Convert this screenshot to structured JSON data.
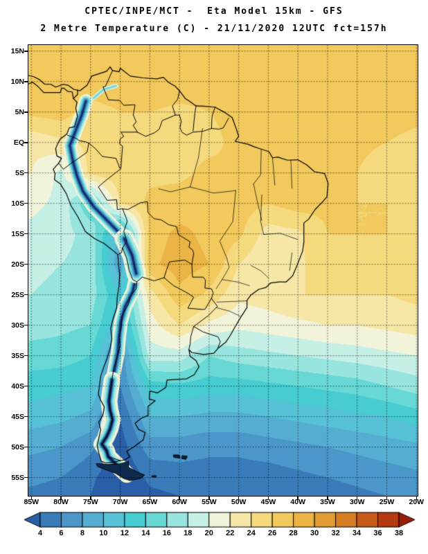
{
  "header": {
    "line1": "CPTEC/INPE/MCT -  Eta Model 15km - GFS",
    "line2": "2 Metre Temperature (C) - 21/11/2020 12UTC fct=157h"
  },
  "map": {
    "extent": {
      "lon_min": -85.5,
      "lon_max": -19.8,
      "lat_min": -58.0,
      "lat_max": 16.0
    },
    "lat_labels": [
      "15N",
      "10N",
      "5N",
      "EQ",
      "5S",
      "10S",
      "15S",
      "20S",
      "25S",
      "30S",
      "35S",
      "40S",
      "45S",
      "50S",
      "55S"
    ],
    "lat_values": [
      15,
      10,
      5,
      0,
      -5,
      -10,
      -15,
      -20,
      -25,
      -30,
      -35,
      -40,
      -45,
      -50,
      -55
    ],
    "lon_labels": [
      "85W",
      "80W",
      "75W",
      "70W",
      "65W",
      "60W",
      "55W",
      "50W",
      "45W",
      "40W",
      "35W",
      "30W",
      "25W",
      "20W"
    ],
    "lon_values": [
      -85,
      -80,
      -75,
      -70,
      -65,
      -60,
      -55,
      -50,
      -45,
      -40,
      -35,
      -30,
      -25,
      -20
    ]
  },
  "colorbar": {
    "tick_labels": [
      "4",
      "6",
      "8",
      "10",
      "12",
      "14",
      "16",
      "18",
      "20",
      "22",
      "24",
      "26",
      "28",
      "30",
      "32",
      "34",
      "36",
      "38"
    ],
    "colors": [
      "#2a5ea6",
      "#3a7cba",
      "#4b97c9",
      "#55add2",
      "#57c1d6",
      "#46ccd1",
      "#67d8d3",
      "#97e5de",
      "#c6efe6",
      "#f2f4da",
      "#f6e7a7",
      "#f5d97d",
      "#f1c95c",
      "#ebb445",
      "#e39b33",
      "#d77d24",
      "#c65b17",
      "#b23a0e",
      "#971f07"
    ]
  },
  "chart_data": {
    "type": "heatmap",
    "title": "2 Metre Temperature (C)",
    "source": "CPTEC/INPE/MCT",
    "model": "Eta Model 15km - GFS",
    "valid": "21/11/2020 12UTC fct=157h",
    "units": "C",
    "scale_ticks": [
      4,
      6,
      8,
      10,
      12,
      14,
      16,
      18,
      20,
      22,
      24,
      26,
      28,
      30,
      32,
      34,
      36,
      38
    ],
    "grid": {
      "lons": [
        -85,
        -80,
        -75,
        -70,
        -65,
        -60,
        -55,
        -50,
        -45,
        -40,
        -35,
        -30,
        -25,
        -20
      ],
      "lats": [
        15,
        10,
        5,
        0,
        -5,
        -10,
        -15,
        -20,
        -25,
        -30,
        -35,
        -40,
        -45,
        -50,
        -55,
        -58
      ],
      "temps_c": [
        [
          27,
          27.5,
          27.5,
          27.5,
          27.5,
          27.5,
          27.5,
          27.5,
          27.2,
          27,
          27,
          26.8,
          26.6,
          26.5
        ],
        [
          26.5,
          27.5,
          27.5,
          27.5,
          27.5,
          27.2,
          27,
          27,
          27,
          26.8,
          26.6,
          26.5,
          26.4,
          26.3
        ],
        [
          26.5,
          27,
          25,
          26,
          26,
          25.5,
          26,
          26.5,
          27,
          27,
          26.8,
          26.5,
          26.3,
          26.2
        ],
        [
          22.5,
          23.5,
          24.5,
          25.5,
          25.5,
          25.5,
          25.5,
          26.5,
          27.5,
          27,
          26.5,
          26.2,
          26,
          25.8
        ],
        [
          22,
          19.5,
          24.5,
          25.5,
          25.5,
          25.5,
          26.5,
          26,
          26.5,
          26.5,
          26.5,
          26,
          25.5,
          25.5
        ],
        [
          20.5,
          19.5,
          14,
          24,
          26.5,
          27,
          27.5,
          27,
          26,
          27,
          26.5,
          26,
          26,
          25.5
        ],
        [
          19.5,
          18.5,
          17.5,
          9,
          27,
          28.5,
          27.5,
          26.5,
          23,
          23.5,
          26,
          26,
          26,
          26
        ],
        [
          18.5,
          18,
          17.5,
          8,
          27.5,
          29,
          28,
          24,
          22,
          23.5,
          25.5,
          25.5,
          25.5,
          25.5
        ],
        [
          18,
          17.5,
          17,
          12,
          23,
          27.5,
          25.5,
          22.5,
          23,
          24,
          24,
          24,
          24,
          24.5
        ],
        [
          17,
          16.5,
          16,
          10,
          21,
          24,
          21.5,
          20.5,
          21,
          21.5,
          22,
          22,
          22.5,
          23
        ],
        [
          15,
          15,
          14,
          6,
          19,
          19,
          16,
          17,
          17.5,
          18,
          18.5,
          19,
          19.5,
          20
        ],
        [
          13,
          12.5,
          12,
          6,
          13,
          13.5,
          13,
          13,
          13.5,
          14,
          14.5,
          15,
          16,
          17
        ],
        [
          11,
          10.5,
          9.5,
          4,
          10,
          10,
          9.5,
          9.5,
          10,
          10.5,
          11,
          11.5,
          12,
          13
        ],
        [
          8.5,
          8,
          6.5,
          3,
          7,
          7,
          6.5,
          6.5,
          7,
          7.5,
          8,
          8.5,
          9,
          9.5
        ],
        [
          6.5,
          6,
          4.5,
          2,
          4.5,
          5,
          5,
          5,
          5,
          5.5,
          6,
          6.5,
          7,
          7.5
        ],
        [
          5.5,
          5,
          4,
          1.5,
          3.5,
          4,
          4,
          4,
          4,
          4.5,
          5,
          5.5,
          6,
          6.5
        ]
      ]
    }
  }
}
